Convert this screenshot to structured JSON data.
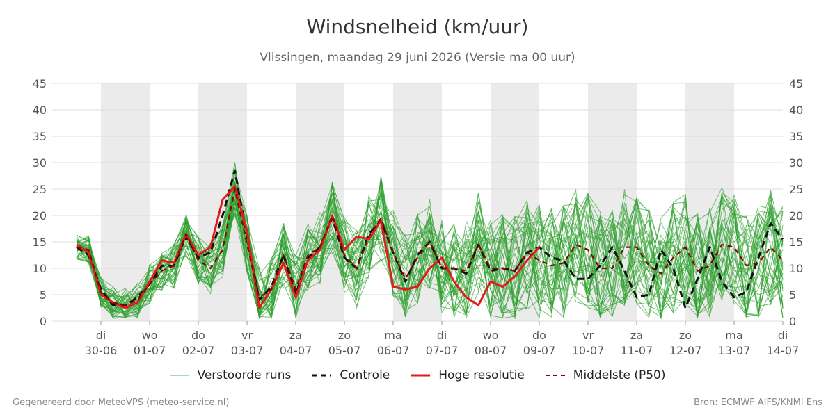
{
  "title": "Windsnelheid (km/uur)",
  "subtitle": "Vlissingen, maandag 29 juni 2026 (Versie ma 00 uur)",
  "footer": {
    "left": "Gegenereerd door MeteoVPS (meteo-service.nl)",
    "right": "Bron: ECMWF AIFS/KNMI Ens"
  },
  "colors": {
    "ensemble": "#2ca02c",
    "control": "#111111",
    "high_res": "#e31a1c",
    "median": "#8b0000",
    "night_band": "#ebebeb",
    "grid": "#dddddd"
  },
  "chart_data": {
    "type": "line",
    "title": "Windsnelheid (km/uur)",
    "subtitle": "Vlissingen, maandag 29 juni 2026 (Versie ma 00 uur)",
    "ylim": [
      0,
      45
    ],
    "yticks": [
      0,
      5,
      10,
      15,
      20,
      25,
      30,
      35,
      40,
      45
    ],
    "xlim": [
      0,
      15.0
    ],
    "x_ticks": [
      {
        "day": "di",
        "date": "30-06",
        "x": 1
      },
      {
        "day": "wo",
        "date": "01-07",
        "x": 2
      },
      {
        "day": "do",
        "date": "02-07",
        "x": 3
      },
      {
        "day": "vr",
        "date": "03-07",
        "x": 4
      },
      {
        "day": "za",
        "date": "04-07",
        "x": 5
      },
      {
        "day": "zo",
        "date": "05-07",
        "x": 6
      },
      {
        "day": "ma",
        "date": "06-07",
        "x": 7
      },
      {
        "day": "di",
        "date": "07-07",
        "x": 8
      },
      {
        "day": "wo",
        "date": "08-07",
        "x": 9
      },
      {
        "day": "do",
        "date": "09-07",
        "x": 10
      },
      {
        "day": "vr",
        "date": "10-07",
        "x": 11
      },
      {
        "day": "za",
        "date": "11-07",
        "x": 12
      },
      {
        "day": "zo",
        "date": "12-07",
        "x": 13
      },
      {
        "day": "ma",
        "date": "13-07",
        "x": 14
      },
      {
        "day": "di",
        "date": "14-07",
        "x": 15
      }
    ],
    "shaded_bands": [
      [
        1,
        2
      ],
      [
        3,
        4
      ],
      [
        5,
        6
      ],
      [
        7,
        8
      ],
      [
        9,
        10
      ],
      [
        11,
        12
      ],
      [
        13,
        14
      ]
    ],
    "grid": true,
    "legend_position": "bottom",
    "legend": [
      {
        "label": "Verstoorde runs",
        "style": "thin-solid",
        "color": "#2ca02c"
      },
      {
        "label": "Controle",
        "style": "dashed",
        "color": "#111111"
      },
      {
        "label": "Hoge resolutie",
        "style": "thick-solid",
        "color": "#e31a1c"
      },
      {
        "label": "Middelste (P50)",
        "style": "dashed",
        "color": "#8b0000"
      }
    ],
    "series": [
      {
        "name": "Hoge resolutie",
        "x": [
          0.5,
          0.75,
          1.0,
          1.25,
          1.5,
          1.75,
          2.0,
          2.25,
          2.5,
          2.75,
          3.0,
          3.25,
          3.5,
          3.75,
          4.0,
          4.25,
          4.5,
          4.75,
          5.0,
          5.25,
          5.5,
          5.75,
          6.0,
          6.25,
          6.5,
          6.75,
          7.0,
          7.25,
          7.5,
          7.75,
          8.0,
          8.25,
          8.5,
          8.75,
          9.0,
          9.25,
          9.5,
          9.75,
          10.0
        ],
        "y": [
          14.5,
          13.0,
          5.0,
          3.5,
          2.5,
          3.5,
          7.5,
          11.5,
          11.0,
          16.5,
          12.5,
          14.0,
          23.0,
          25.5,
          17.0,
          2.5,
          6.0,
          11.0,
          4.5,
          11.5,
          13.5,
          20.0,
          13.5,
          16.0,
          15.5,
          19.0,
          6.5,
          6.0,
          6.5,
          10.0,
          12.0,
          7.5,
          4.5,
          3.0,
          7.5,
          6.5,
          8.5,
          11.5,
          14.0
        ]
      },
      {
        "name": "Controle",
        "x": [
          0.5,
          0.75,
          1.0,
          1.25,
          1.5,
          1.75,
          2.0,
          2.25,
          2.5,
          2.75,
          3.0,
          3.25,
          3.5,
          3.75,
          4.0,
          4.25,
          4.5,
          4.75,
          5.0,
          5.25,
          5.5,
          5.75,
          6.0,
          6.25,
          6.5,
          6.75,
          7.0,
          7.25,
          7.5,
          7.75,
          8.0,
          8.25,
          8.5,
          8.75,
          9.0,
          9.25,
          9.5,
          9.75,
          10.0,
          10.25,
          10.5,
          10.75,
          11.0,
          11.25,
          11.5,
          11.75,
          12.0,
          12.25,
          12.5,
          12.75,
          13.0,
          13.25,
          13.5,
          13.75,
          14.0,
          14.25,
          14.5,
          14.75,
          15.0
        ],
        "y": [
          14.0,
          12.5,
          6.0,
          3.0,
          3.0,
          4.5,
          7.0,
          10.5,
          10.5,
          16.0,
          12.0,
          13.0,
          20.0,
          28.5,
          16.0,
          4.0,
          6.5,
          12.5,
          5.0,
          12.0,
          14.0,
          19.5,
          12.0,
          10.0,
          16.5,
          19.0,
          13.0,
          7.5,
          12.5,
          15.0,
          10.0,
          10.0,
          9.0,
          14.5,
          9.5,
          10.0,
          9.5,
          13.0,
          14.0,
          12.0,
          11.5,
          8.0,
          8.0,
          10.5,
          14.0,
          9.5,
          4.5,
          5.0,
          13.5,
          10.0,
          2.5,
          8.0,
          14.0,
          7.5,
          4.5,
          5.5,
          12.0,
          18.5,
          15.5
        ]
      },
      {
        "name": "Middelste (P50)",
        "x": [
          0.5,
          0.75,
          1.0,
          1.25,
          1.5,
          1.75,
          2.0,
          2.25,
          2.5,
          2.75,
          3.0,
          3.25,
          3.5,
          3.75,
          4.0,
          4.25,
          4.5,
          4.75,
          5.0,
          5.25,
          5.5,
          5.75,
          6.0,
          6.25,
          6.5,
          6.75,
          7.0,
          7.25,
          7.5,
          7.75,
          8.0,
          8.25,
          8.5,
          8.75,
          9.0,
          9.25,
          9.5,
          9.75,
          10.0,
          10.25,
          10.5,
          10.75,
          11.0,
          11.25,
          11.5,
          11.75,
          12.0,
          12.25,
          12.5,
          12.75,
          13.0,
          13.25,
          13.5,
          13.75,
          14.0,
          14.25,
          14.5,
          14.75,
          15.0
        ],
        "y": [
          14.0,
          13.5,
          5.5,
          3.5,
          3.0,
          4.0,
          7.0,
          9.5,
          10.5,
          16.5,
          11.5,
          10.0,
          13.5,
          25.0,
          14.5,
          4.5,
          6.0,
          12.5,
          6.0,
          12.5,
          14.0,
          20.0,
          12.5,
          10.0,
          16.0,
          19.5,
          13.0,
          8.0,
          12.0,
          15.0,
          10.0,
          10.0,
          9.5,
          14.5,
          10.0,
          10.0,
          9.5,
          13.0,
          11.5,
          10.5,
          11.0,
          14.5,
          13.5,
          10.0,
          10.0,
          14.0,
          14.0,
          10.5,
          9.0,
          12.0,
          14.0,
          9.5,
          10.5,
          14.5,
          14.0,
          10.5,
          11.0,
          14.0,
          11.5
        ]
      }
    ]
  }
}
